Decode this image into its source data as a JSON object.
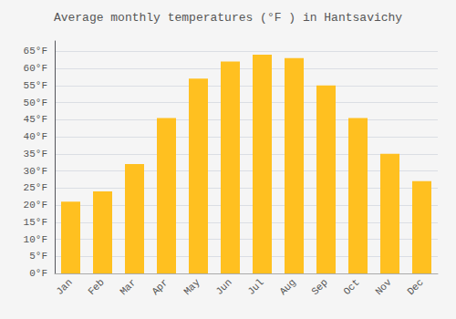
{
  "chart_data": {
    "type": "bar",
    "title": "Average monthly temperatures (°F ) in Hantsavichy",
    "categories": [
      "Jan",
      "Feb",
      "Mar",
      "Apr",
      "May",
      "Jun",
      "Jul",
      "Aug",
      "Sep",
      "Oct",
      "Nov",
      "Dec"
    ],
    "values": [
      21,
      24,
      32,
      45.5,
      57,
      62,
      64,
      63,
      55,
      45.5,
      35,
      27
    ],
    "color": "#FFC020",
    "ylim": [
      0,
      68
    ],
    "yticks": [
      {
        "value": 0,
        "label": "0°F"
      },
      {
        "value": 5,
        "label": "5°F"
      },
      {
        "value": 10,
        "label": "10°F"
      },
      {
        "value": 15,
        "label": "15°F"
      },
      {
        "value": 20,
        "label": "20°F"
      },
      {
        "value": 25,
        "label": "25°F"
      },
      {
        "value": 30,
        "label": "30°F"
      },
      {
        "value": 35,
        "label": "35°F"
      },
      {
        "value": 40,
        "label": "40°F"
      },
      {
        "value": 45,
        "label": "45°F"
      },
      {
        "value": 50,
        "label": "50°F"
      },
      {
        "value": 55,
        "label": "55°F"
      },
      {
        "value": 60,
        "label": "60°F"
      },
      {
        "value": 65,
        "label": "65°F"
      }
    ],
    "grid": true
  }
}
